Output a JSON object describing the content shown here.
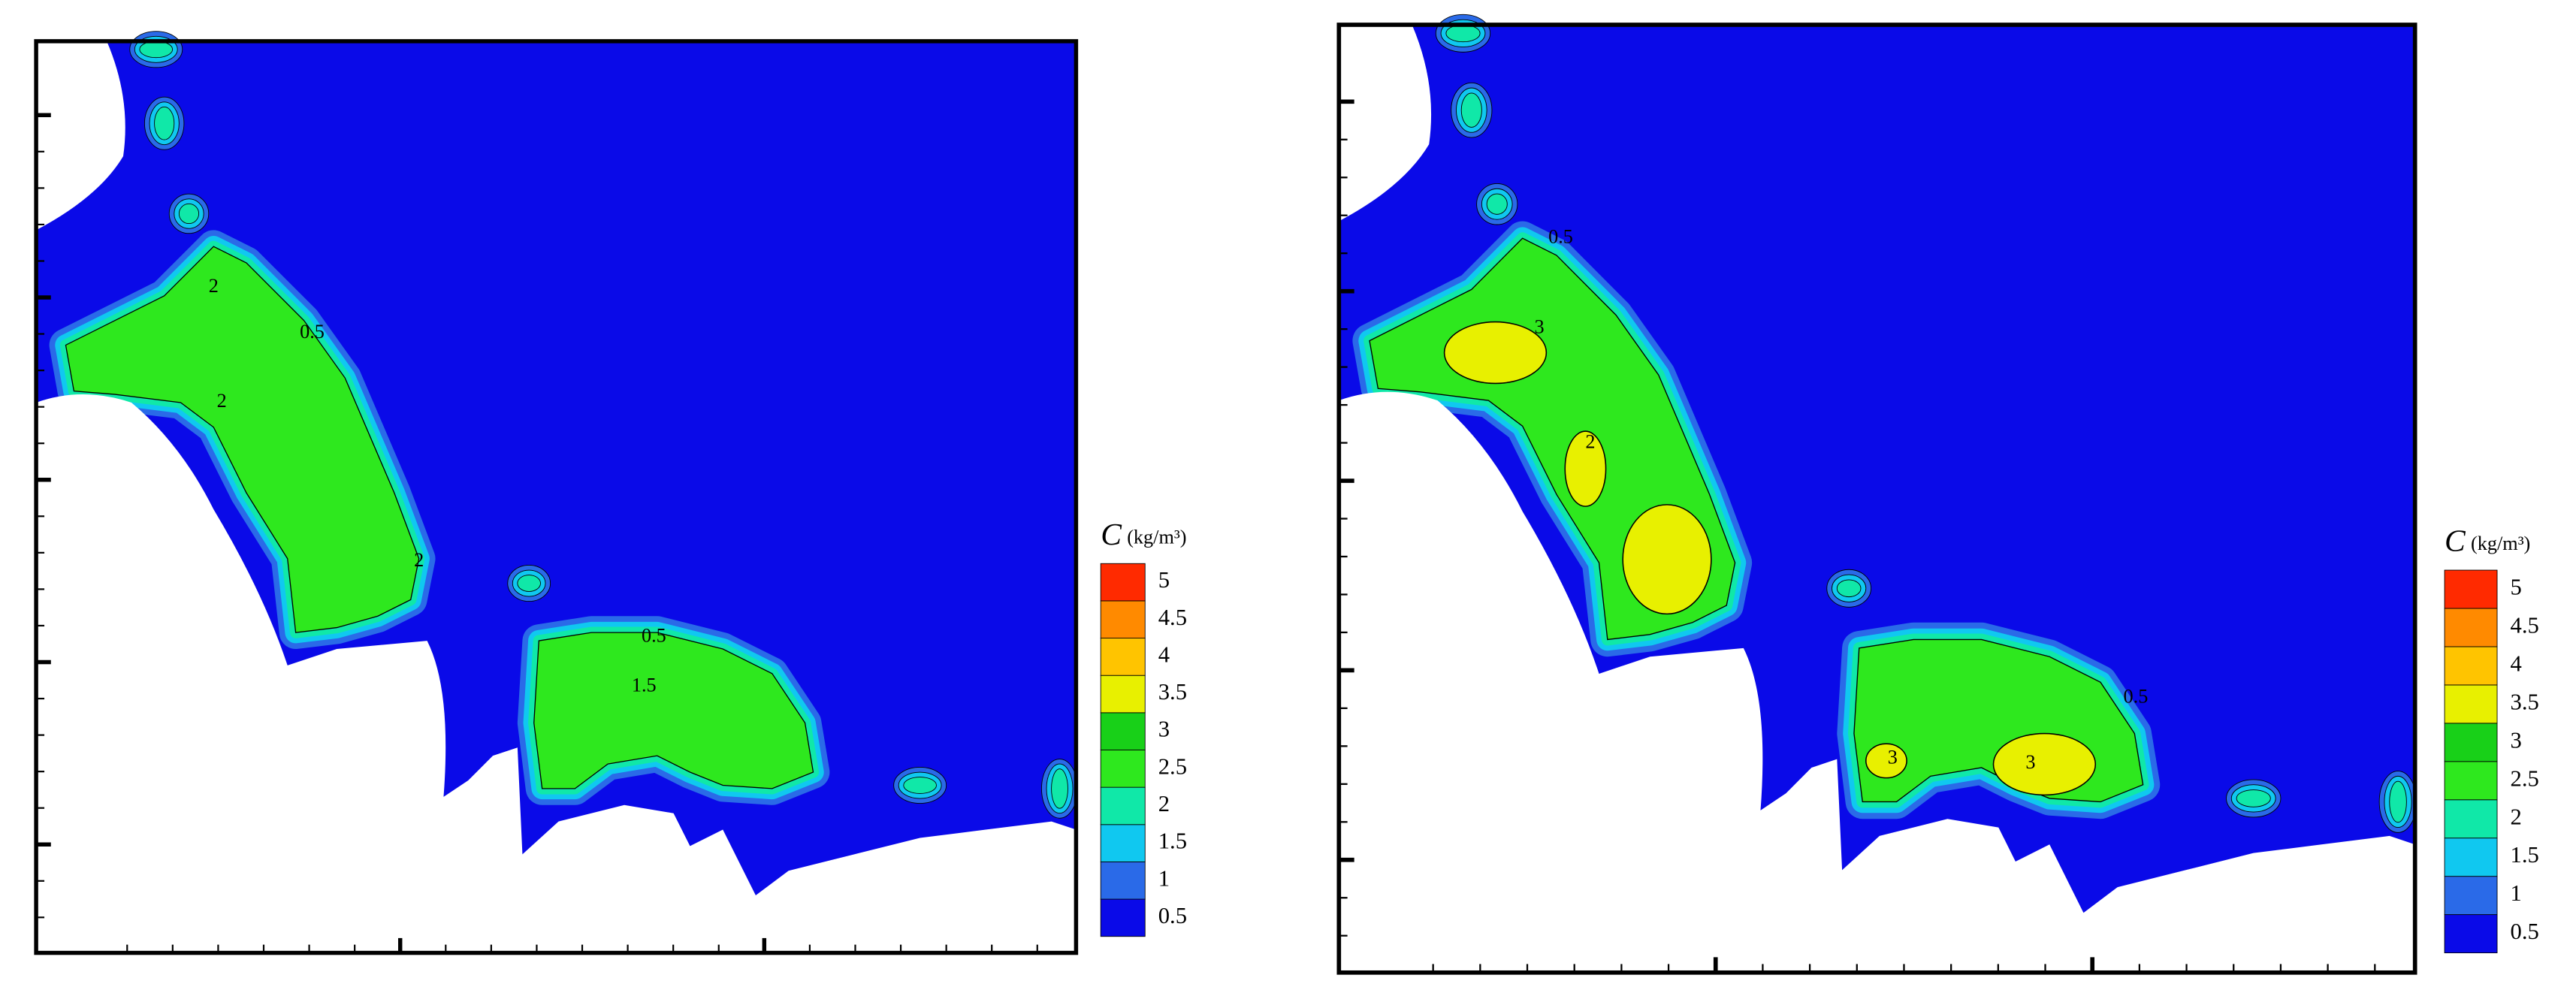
{
  "chart_data": [
    {
      "type": "contour",
      "colorbar_title": "C",
      "colorbar_unit": "(kg/m³)",
      "levels": [
        0.5,
        1,
        1.5,
        2,
        2.5,
        3,
        3.5,
        4,
        4.5,
        5
      ],
      "colors": [
        "#0a0ae8",
        "#2a6ae8",
        "#10c8f0",
        "#10e8a8",
        "#2ee81e",
        "#18d018",
        "#e8f000",
        "#ffc400",
        "#ff8a00",
        "#ff2a00"
      ],
      "contour_labels": [
        2,
        0.5,
        2,
        0.5,
        1.5,
        2
      ]
    },
    {
      "type": "contour",
      "colorbar_title": "C",
      "colorbar_unit": "(kg/m³)",
      "levels": [
        0.5,
        1,
        1.5,
        2,
        2.5,
        3,
        3.5,
        4,
        4.5,
        5
      ],
      "colors": [
        "#0a0ae8",
        "#2a6ae8",
        "#10c8f0",
        "#10e8a8",
        "#2ee81e",
        "#18d018",
        "#e8f000",
        "#ffc400",
        "#ff8a00",
        "#ff2a00"
      ],
      "contour_labels": [
        0.5,
        3,
        2,
        3,
        3,
        0.5
      ]
    }
  ]
}
